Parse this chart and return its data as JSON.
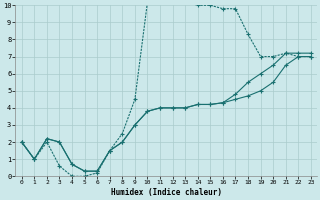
{
  "xlabel": "Humidex (Indice chaleur)",
  "bg_color": "#cce8ea",
  "grid_color": "#aacccc",
  "line_color": "#1a7070",
  "xlim": [
    -0.5,
    23.5
  ],
  "ylim": [
    0,
    10
  ],
  "xticks": [
    0,
    1,
    2,
    3,
    4,
    5,
    6,
    7,
    8,
    9,
    10,
    11,
    12,
    13,
    14,
    15,
    16,
    17,
    18,
    19,
    20,
    21,
    22,
    23
  ],
  "yticks": [
    0,
    1,
    2,
    3,
    4,
    5,
    6,
    7,
    8,
    9,
    10
  ],
  "line1_x": [
    0,
    1,
    2,
    3,
    4,
    5,
    6,
    7,
    8,
    9,
    10,
    11,
    12,
    13,
    14,
    15,
    16,
    17,
    18,
    19,
    20,
    21,
    22,
    23
  ],
  "line1_y": [
    2,
    1,
    2,
    0.6,
    0,
    0,
    0.2,
    1.5,
    2.5,
    4.5,
    10.2,
    10.4,
    10.5,
    10.2,
    10.0,
    10.0,
    9.8,
    9.8,
    8.3,
    7.0,
    7.0,
    7.2,
    7.0,
    7.0
  ],
  "line2_x": [
    0,
    1,
    2,
    3,
    4,
    5,
    6,
    7,
    8,
    9,
    10,
    11,
    12,
    13,
    14,
    15,
    16,
    17,
    18,
    19,
    20,
    21,
    22,
    23
  ],
  "line2_y": [
    2,
    1,
    2.2,
    2.0,
    0.7,
    0.3,
    0.3,
    1.5,
    2.0,
    3.0,
    3.8,
    4.0,
    4.0,
    4.0,
    4.2,
    4.2,
    4.3,
    4.5,
    4.7,
    5.0,
    5.5,
    6.5,
    7.0,
    7.0
  ],
  "line3_x": [
    0,
    1,
    2,
    3,
    4,
    5,
    6,
    7,
    8,
    9,
    10,
    11,
    12,
    13,
    14,
    15,
    16,
    17,
    18,
    19,
    20,
    21,
    22,
    23
  ],
  "line3_y": [
    2,
    1,
    2.2,
    2.0,
    0.7,
    0.3,
    0.3,
    1.5,
    2.0,
    3.0,
    3.8,
    4.0,
    4.0,
    4.0,
    4.2,
    4.2,
    4.3,
    4.8,
    5.5,
    6.0,
    6.5,
    7.2,
    7.2,
    7.2
  ]
}
